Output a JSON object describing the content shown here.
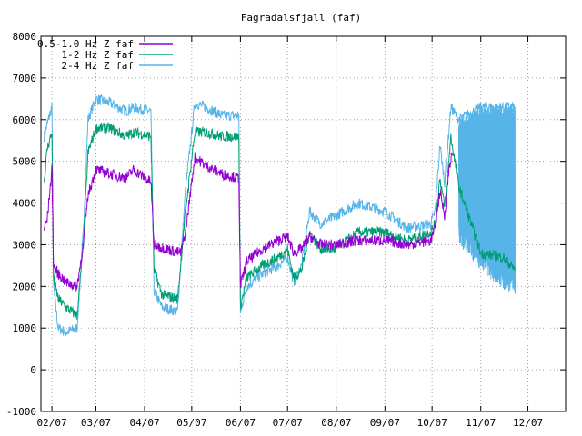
{
  "chart_data": {
    "type": "line",
    "title": "Fagradalsfjall (faf)",
    "xlabel": "",
    "ylabel": "",
    "ylim": [
      -1000,
      8000
    ],
    "yticks": [
      -1000,
      0,
      1000,
      2000,
      3000,
      4000,
      5000,
      6000,
      7000,
      8000
    ],
    "xlim": [
      "2021-01-25",
      "2021-12-25"
    ],
    "xticks": [
      {
        "date": "2021-02-01",
        "label": "02/07"
      },
      {
        "date": "2021-03-01",
        "label": "03/07"
      },
      {
        "date": "2021-04-01",
        "label": "04/07"
      },
      {
        "date": "2021-05-01",
        "label": "05/07"
      },
      {
        "date": "2021-06-01",
        "label": "06/07"
      },
      {
        "date": "2021-07-01",
        "label": "07/07"
      },
      {
        "date": "2021-08-01",
        "label": "08/07"
      },
      {
        "date": "2021-09-01",
        "label": "09/07"
      },
      {
        "date": "2021-10-01",
        "label": "10/07"
      },
      {
        "date": "2021-11-01",
        "label": "11/07"
      },
      {
        "date": "2021-12-01",
        "label": "12/07"
      }
    ],
    "grid": true,
    "legend_position": "top-left",
    "series": [
      {
        "name": "0.5-1.0 Hz Z faf",
        "color": "#9400d3",
        "values": [
          [
            "2021-01-27",
            3400
          ],
          [
            "2021-01-29",
            3600
          ],
          [
            "2021-02-01",
            4800
          ],
          [
            "2021-02-02",
            2500
          ],
          [
            "2021-02-05",
            2300
          ],
          [
            "2021-02-10",
            2100
          ],
          [
            "2021-02-17",
            2000
          ],
          [
            "2021-02-21",
            3000
          ],
          [
            "2021-02-24",
            4200
          ],
          [
            "2021-03-01",
            4800
          ],
          [
            "2021-03-10",
            4700
          ],
          [
            "2021-03-20",
            4600
          ],
          [
            "2021-03-25",
            4800
          ],
          [
            "2021-04-05",
            4500
          ],
          [
            "2021-04-07",
            3000
          ],
          [
            "2021-04-15",
            2900
          ],
          [
            "2021-04-24",
            2800
          ],
          [
            "2021-04-27",
            3300
          ],
          [
            "2021-05-03",
            5100
          ],
          [
            "2021-05-10",
            4900
          ],
          [
            "2021-05-20",
            4700
          ],
          [
            "2021-05-31",
            4600
          ],
          [
            "2021-06-01",
            2000
          ],
          [
            "2021-06-05",
            2600
          ],
          [
            "2021-06-15",
            2900
          ],
          [
            "2021-06-25",
            3100
          ],
          [
            "2021-07-01",
            3200
          ],
          [
            "2021-07-05",
            2800
          ],
          [
            "2021-07-10",
            2900
          ],
          [
            "2021-07-15",
            3200
          ],
          [
            "2021-07-22",
            3000
          ],
          [
            "2021-08-01",
            3000
          ],
          [
            "2021-08-15",
            3100
          ],
          [
            "2021-09-01",
            3100
          ],
          [
            "2021-09-15",
            3000
          ],
          [
            "2021-09-30",
            3100
          ],
          [
            "2021-10-03",
            3400
          ],
          [
            "2021-10-06",
            4300
          ],
          [
            "2021-10-09",
            3700
          ],
          [
            "2021-10-12",
            4900
          ],
          [
            "2021-10-14",
            5200
          ]
        ]
      },
      {
        "name": "1-2 Hz Z faf",
        "color": "#009e73",
        "values": [
          [
            "2021-01-27",
            4500
          ],
          [
            "2021-01-29",
            5300
          ],
          [
            "2021-02-01",
            5700
          ],
          [
            "2021-02-02",
            2200
          ],
          [
            "2021-02-05",
            1700
          ],
          [
            "2021-02-10",
            1500
          ],
          [
            "2021-02-17",
            1300
          ],
          [
            "2021-02-21",
            3000
          ],
          [
            "2021-02-24",
            5200
          ],
          [
            "2021-03-01",
            5800
          ],
          [
            "2021-03-10",
            5800
          ],
          [
            "2021-03-20",
            5600
          ],
          [
            "2021-03-25",
            5700
          ],
          [
            "2021-04-05",
            5600
          ],
          [
            "2021-04-07",
            2400
          ],
          [
            "2021-04-12",
            1800
          ],
          [
            "2021-04-22",
            1700
          ],
          [
            "2021-04-27",
            3800
          ],
          [
            "2021-05-03",
            5700
          ],
          [
            "2021-05-10",
            5700
          ],
          [
            "2021-05-20",
            5600
          ],
          [
            "2021-05-31",
            5600
          ],
          [
            "2021-06-01",
            1500
          ],
          [
            "2021-06-05",
            2200
          ],
          [
            "2021-06-15",
            2500
          ],
          [
            "2021-06-25",
            2700
          ],
          [
            "2021-07-01",
            2900
          ],
          [
            "2021-07-05",
            2200
          ],
          [
            "2021-07-10",
            2400
          ],
          [
            "2021-07-15",
            3300
          ],
          [
            "2021-07-22",
            2900
          ],
          [
            "2021-08-01",
            2900
          ],
          [
            "2021-08-15",
            3300
          ],
          [
            "2021-09-01",
            3300
          ],
          [
            "2021-09-15",
            3100
          ],
          [
            "2021-09-30",
            3300
          ],
          [
            "2021-10-03",
            3500
          ],
          [
            "2021-10-06",
            4600
          ],
          [
            "2021-10-09",
            3900
          ],
          [
            "2021-10-13",
            5600
          ],
          [
            "2021-10-18",
            4400
          ],
          [
            "2021-11-01",
            2800
          ],
          [
            "2021-11-15",
            2700
          ],
          [
            "2021-11-23",
            2400
          ]
        ]
      },
      {
        "name": "2-4 Hz Z faf",
        "color": "#56b4e9",
        "values": [
          [
            "2021-01-27",
            5600
          ],
          [
            "2021-01-29",
            5900
          ],
          [
            "2021-02-01",
            6300
          ],
          [
            "2021-02-02",
            2000
          ],
          [
            "2021-02-05",
            1000
          ],
          [
            "2021-02-10",
            900
          ],
          [
            "2021-02-17",
            1000
          ],
          [
            "2021-02-21",
            3300
          ],
          [
            "2021-02-24",
            6000
          ],
          [
            "2021-03-01",
            6500
          ],
          [
            "2021-03-10",
            6400
          ],
          [
            "2021-03-20",
            6200
          ],
          [
            "2021-03-25",
            6300
          ],
          [
            "2021-04-05",
            6200
          ],
          [
            "2021-04-07",
            1900
          ],
          [
            "2021-04-12",
            1500
          ],
          [
            "2021-04-22",
            1400
          ],
          [
            "2021-04-27",
            4300
          ],
          [
            "2021-05-03",
            6400
          ],
          [
            "2021-05-10",
            6300
          ],
          [
            "2021-05-20",
            6100
          ],
          [
            "2021-05-31",
            6100
          ],
          [
            "2021-06-01",
            1400
          ],
          [
            "2021-06-05",
            2000
          ],
          [
            "2021-06-15",
            2300
          ],
          [
            "2021-06-25",
            2500
          ],
          [
            "2021-07-01",
            2700
          ],
          [
            "2021-07-05",
            2100
          ],
          [
            "2021-07-10",
            2500
          ],
          [
            "2021-07-15",
            3800
          ],
          [
            "2021-07-22",
            3500
          ],
          [
            "2021-08-01",
            3700
          ],
          [
            "2021-08-15",
            4000
          ],
          [
            "2021-09-01",
            3800
          ],
          [
            "2021-09-15",
            3400
          ],
          [
            "2021-09-30",
            3500
          ],
          [
            "2021-10-03",
            3800
          ],
          [
            "2021-10-06",
            5400
          ],
          [
            "2021-10-09",
            4500
          ],
          [
            "2021-10-13",
            6300
          ],
          [
            "2021-10-18",
            6000
          ],
          [
            "2021-11-01",
            6300
          ],
          [
            "2021-11-15",
            6300
          ],
          [
            "2021-11-23",
            6300
          ]
        ],
        "lower_envelope": [
          [
            "2021-10-18",
            3000
          ],
          [
            "2021-11-01",
            2400
          ],
          [
            "2021-11-15",
            1900
          ],
          [
            "2021-11-23",
            1800
          ]
        ]
      }
    ]
  }
}
